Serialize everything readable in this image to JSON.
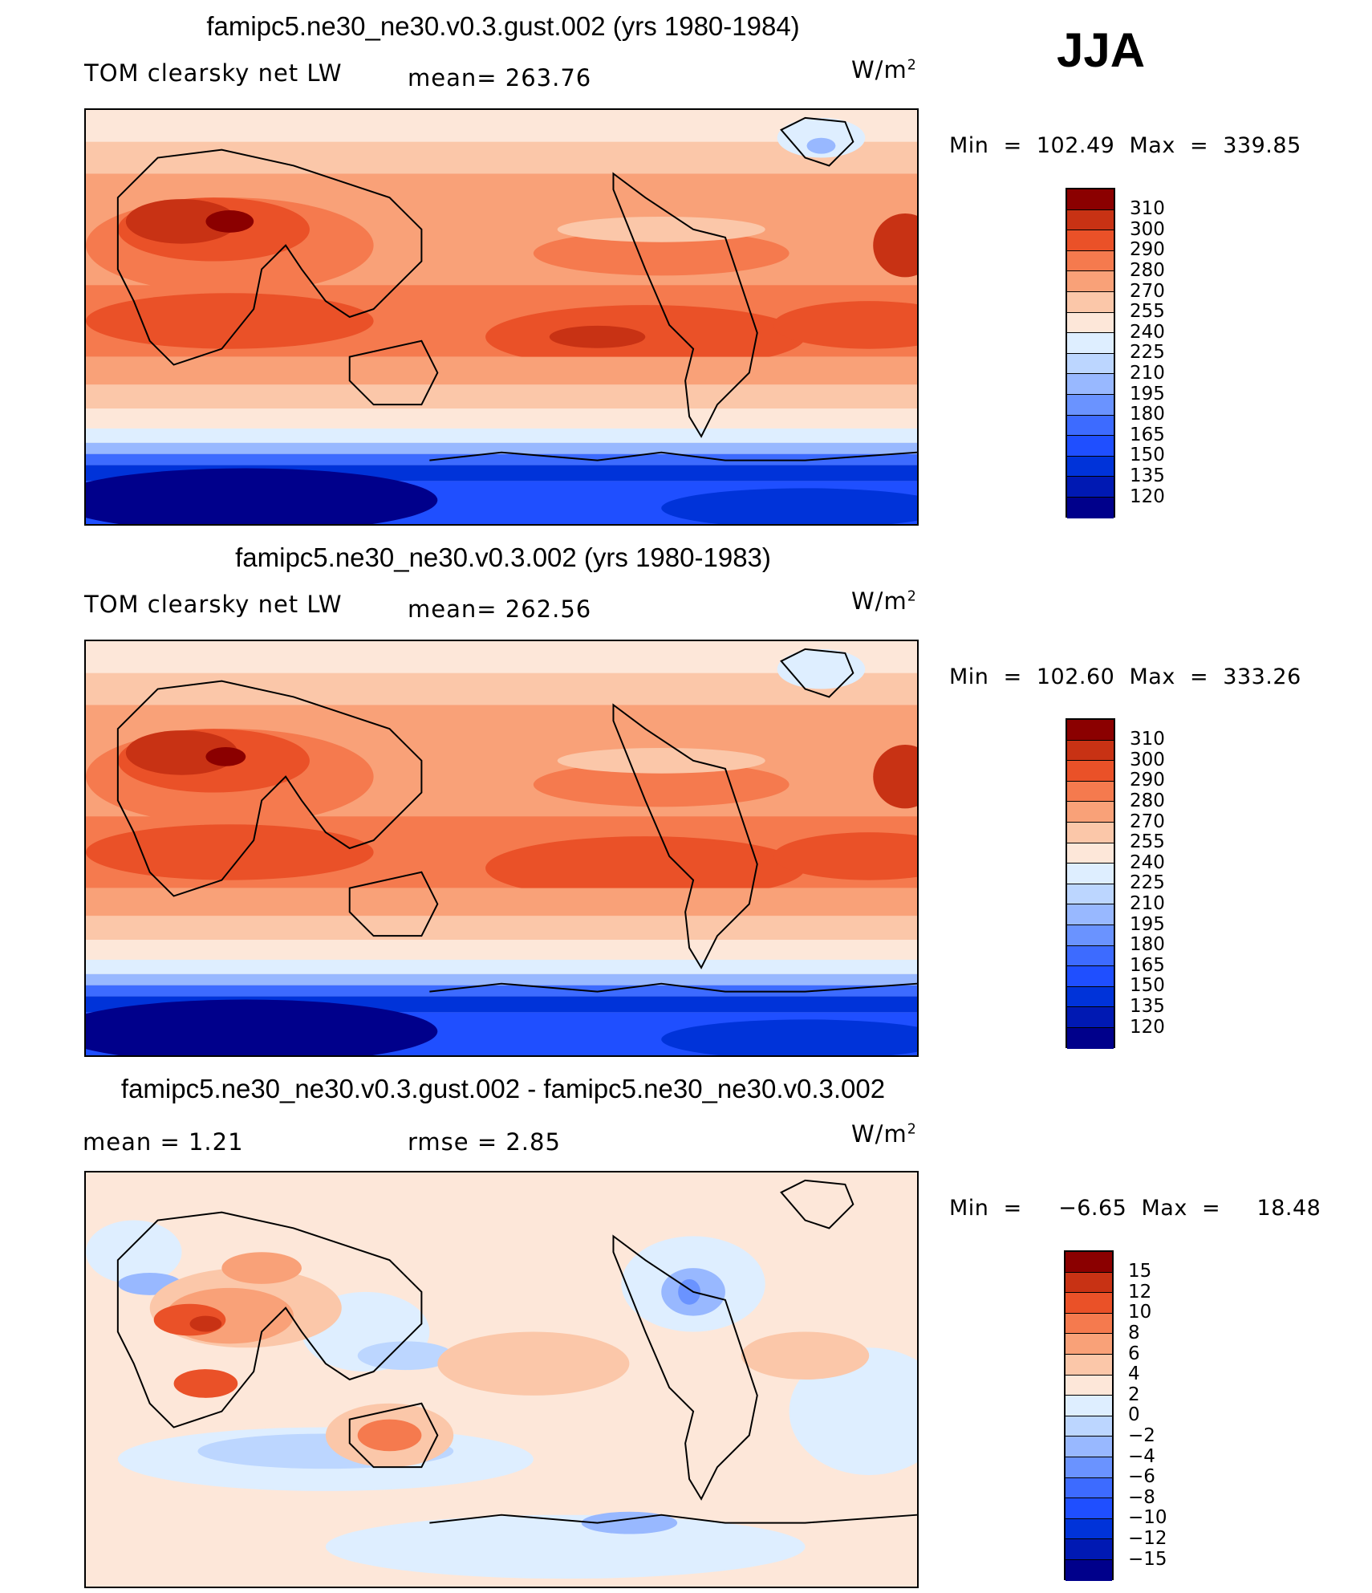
{
  "season": "JJA",
  "units_base": "W/m",
  "units_exp": "2",
  "panels": [
    {
      "title": "famipc5.ne30_ne30.v0.3.gust.002 (yrs 1980-1984)",
      "left_label": "TOM clearsky net LW",
      "center_label": "mean=  263.76",
      "min_max": "Min  =  102.49  Max  =  339.85"
    },
    {
      "title": "famipc5.ne30_ne30.v0.3.002 (yrs 1980-1983)",
      "left_label": "TOM clearsky net LW",
      "center_label": "mean=  262.56",
      "min_max": "Min  =  102.60  Max  =  333.26"
    },
    {
      "title": "famipc5.ne30_ne30.v0.3.gust.002 - famipc5.ne30_ne30.v0.3.002",
      "left_label": "mean  =      1.21",
      "center_label": "rmse  =     2.85",
      "min_max": "Min  =     −6.65  Max  =     18.48"
    }
  ],
  "chart_data": [
    {
      "type": "heatmap",
      "title": "famipc5.ne30_ne30.v0.3.gust.002 (yrs 1980-1984)",
      "variable": "TOM clearsky net LW",
      "units": "W/m2",
      "mean": 263.76,
      "min": 102.49,
      "max": 339.85,
      "contour_levels": [
        120,
        135,
        150,
        165,
        180,
        195,
        210,
        225,
        240,
        255,
        270,
        280,
        290,
        300,
        310
      ],
      "colors": [
        "#00008b",
        "#0019b3",
        "#0033d9",
        "#1f4fff",
        "#3d6bff",
        "#6a93ff",
        "#98b8ff",
        "#bcd6ff",
        "#deeeff",
        "#fde7d9",
        "#fbc7a9",
        "#f9a178",
        "#f57a4e",
        "#ea5128",
        "#c83214",
        "#8b0000"
      ]
    },
    {
      "type": "heatmap",
      "title": "famipc5.ne30_ne30.v0.3.002 (yrs 1980-1983)",
      "variable": "TOM clearsky net LW",
      "units": "W/m2",
      "mean": 262.56,
      "min": 102.6,
      "max": 333.26,
      "contour_levels": [
        120,
        135,
        150,
        165,
        180,
        195,
        210,
        225,
        240,
        255,
        270,
        280,
        290,
        300,
        310
      ],
      "colors": [
        "#00008b",
        "#0019b3",
        "#0033d9",
        "#1f4fff",
        "#3d6bff",
        "#6a93ff",
        "#98b8ff",
        "#bcd6ff",
        "#deeeff",
        "#fde7d9",
        "#fbc7a9",
        "#f9a178",
        "#f57a4e",
        "#ea5128",
        "#c83214",
        "#8b0000"
      ]
    },
    {
      "type": "heatmap",
      "title": "famipc5.ne30_ne30.v0.3.gust.002 - famipc5.ne30_ne30.v0.3.002",
      "variable": "difference",
      "units": "W/m2",
      "mean": 1.21,
      "rmse": 2.85,
      "min": -6.65,
      "max": 18.48,
      "contour_levels": [
        -15,
        -12,
        -10,
        -8,
        -6,
        -4,
        -2,
        0,
        2,
        4,
        6,
        8,
        10,
        12,
        15
      ],
      "colors": [
        "#00008b",
        "#0019b3",
        "#0033d9",
        "#1f4fff",
        "#3d6bff",
        "#6a93ff",
        "#98b8ff",
        "#bcd6ff",
        "#deeeff",
        "#fde7d9",
        "#fbc7a9",
        "#f9a178",
        "#f57a4e",
        "#ea5128",
        "#c83214",
        "#8b0000"
      ]
    }
  ]
}
